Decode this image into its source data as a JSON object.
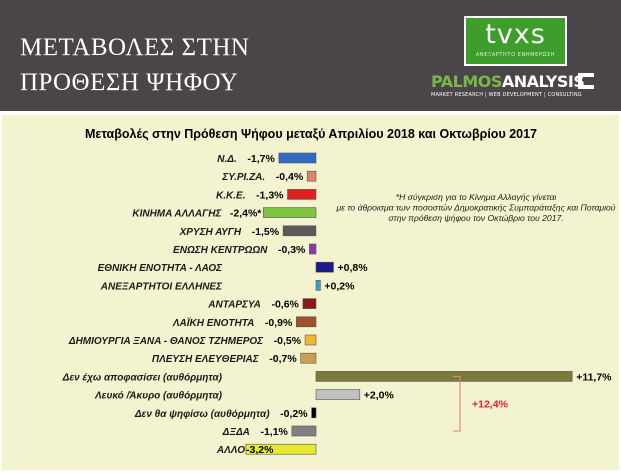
{
  "header": {
    "title_line1": "ΜΕΤΑΒΟΛΕΣ ΣΤΗΝ",
    "title_line2": "ΠΡΟΘΕΣΗ ΨΗΦΟΥ",
    "tvxs_logo": "tvxs",
    "tvxs_tagline": "ΑΝΕΞΑΡΤΗΤΟ ΕΝΗΜΕΡΩΣΗ",
    "palmos_name_part1": "PALMOS",
    "palmos_name_part2": "ANALYSIS",
    "palmos_tagline": "MARKET RESEARCH | WEB DEVELOPMENT | CONSULTING"
  },
  "chart_data": {
    "type": "bar",
    "orientation": "horizontal",
    "title": "Μεταβολές στην Πρόθεση Ψήφου μεταξύ Απριλίου 2018 και Οκτωβρίου 2017",
    "unit": "%",
    "categories": [
      "Ν.Δ.",
      "ΣΥ.ΡΙ.ΖΑ.",
      "Κ.Κ.Ε.",
      "ΚΙΝΗΜΑ ΑΛΛΑΓΗΣ",
      "ΧΡΥΣΗ ΑΥΓΗ",
      "ΕΝΩΣΗ ΚΕΝΤΡΩΩΝ",
      "ΕΘΝΙΚΗ ΕΝΟΤΗΤΑ - ΛΑΟΣ",
      "ΑΝΕΞΑΡΤΗΤΟΙ ΕΛΛΗΝΕΣ",
      "ΑΝΤΑΡΣΥΑ",
      "ΛΑΪΚΗ ΕΝΟΤΗΤΑ",
      "ΔΗΜΙΟΥΡΓΙΑ ΞΑΝΑ - ΘΑΝΟΣ ΤΖΗΜΕΡΟΣ",
      "ΠΛΕΥΣΗ ΕΛΕΥΘΕΡΙΑΣ",
      "Δεν έχω αποφασίσει (αυθόρμητα)",
      "Λευκό /Άκυρο (αυθόρμητα)",
      "Δεν θα ψηφίσω (αυθόρμητα)",
      "ΔΞΔΑ",
      "ΑΛΛΟ"
    ],
    "values": [
      -1.7,
      -0.4,
      -1.3,
      -2.4,
      -1.5,
      -0.3,
      0.8,
      0.2,
      -0.6,
      -0.9,
      -0.5,
      -0.7,
      11.7,
      2.0,
      -0.2,
      -1.1,
      -3.2
    ],
    "value_labels": [
      "-1,7%",
      "-0,4%",
      "-1,3%",
      "-2,4%*",
      "-1,5%",
      "-0,3%",
      "+0,8%",
      "+0,2%",
      "-0,6%",
      "-0,9%",
      "-0,5%",
      "-0,7%",
      "+11,7%",
      "+2,0%",
      "-0,2%",
      "-1,1%",
      "-3,2%"
    ],
    "colors": [
      "#2e6cc2",
      "#e0826a",
      "#e02020",
      "#7ec440",
      "#5a5a5a",
      "#8a3aa8",
      "#1a1a8a",
      "#3aa0c8",
      "#8a1a1a",
      "#a0522d",
      "#f0b830",
      "#c8a050",
      "#7a7a3a",
      "#c0c0c0",
      "#000000",
      "#808080",
      "#e8e830"
    ],
    "annotations": {
      "note": "*Η σύγκριση για το Κίνημα Αλλαγής γίνεται με το άθροισμα των ποσοστών Δημοκρατικής Συμπαράταξης και Ποταμιού στην πρόθεση ψήφου τον Οκτώβριο του 2017.",
      "bracket_total": "+12,4%",
      "bracket_total_color": "#e0202a"
    }
  }
}
